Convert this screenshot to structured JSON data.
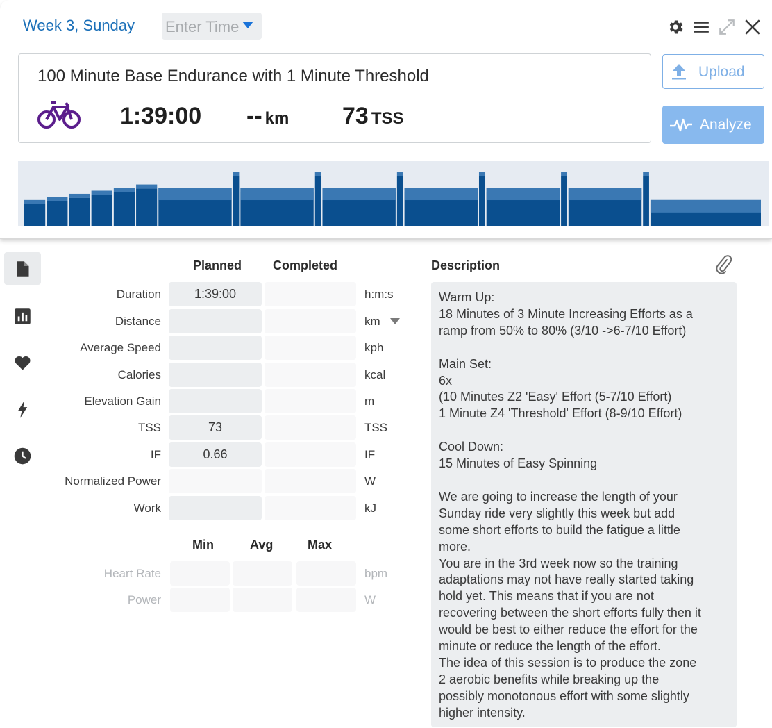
{
  "header": {
    "day_title": "Week 3, Sunday",
    "time_placeholder": "Enter Time",
    "icons": [
      "gear-icon",
      "menu-icon",
      "expand-icon",
      "close-icon"
    ]
  },
  "summary": {
    "title": "100 Minute Base Endurance with 1 Minute Threshold",
    "sport_icon": "bike-icon",
    "duration": "1:39:00",
    "distance_value": "--",
    "distance_unit": "km",
    "tss_value": "73",
    "tss_unit": "TSS"
  },
  "actions": {
    "upload_label": "Upload",
    "analyze_label": "Analyze"
  },
  "colors": {
    "accent_blue": "#1a6fb8",
    "bike_purple": "#5b1d8c",
    "graph_dark": "#0a4f8f",
    "graph_light": "#3a78b3",
    "button_light": "#88b9ee"
  },
  "sidebar": {
    "tabs": [
      {
        "name": "summary",
        "icon": "document-icon",
        "active": true
      },
      {
        "name": "charts",
        "icon": "bar-chart-icon",
        "active": false
      },
      {
        "name": "heart",
        "icon": "heart-icon",
        "active": false
      },
      {
        "name": "power",
        "icon": "lightning-icon",
        "active": false
      },
      {
        "name": "time",
        "icon": "clock-icon",
        "active": false
      }
    ]
  },
  "metrics": {
    "planned_header": "Planned",
    "completed_header": "Completed",
    "rows": [
      {
        "label": "Duration",
        "planned": "1:39:00",
        "completed": "",
        "unit": "h:m:s"
      },
      {
        "label": "Distance",
        "planned": "",
        "completed": "",
        "unit": "km"
      },
      {
        "label": "Average Speed",
        "planned": "",
        "completed": "",
        "unit": "kph"
      },
      {
        "label": "Calories",
        "planned": "",
        "completed": "",
        "unit": "kcal"
      },
      {
        "label": "Elevation Gain",
        "planned": "",
        "completed": "",
        "unit": "m"
      },
      {
        "label": "TSS",
        "planned": "73",
        "completed": "",
        "unit": "TSS"
      },
      {
        "label": "IF",
        "planned": "0.66",
        "completed": "",
        "unit": "IF"
      },
      {
        "label": "Normalized Power",
        "planned": "",
        "completed": "",
        "unit": "W"
      },
      {
        "label": "Work",
        "planned": "",
        "completed": "",
        "unit": "kJ"
      }
    ],
    "range_headers": {
      "min": "Min",
      "avg": "Avg",
      "max": "Max"
    },
    "range_rows": [
      {
        "label": "Heart Rate",
        "min": "",
        "avg": "",
        "max": "",
        "unit": "bpm"
      },
      {
        "label": "Power",
        "min": "",
        "avg": "",
        "max": "",
        "unit": "W"
      }
    ]
  },
  "description": {
    "heading": "Description",
    "attach_icon": "paperclip-icon",
    "text": "Warm Up:\n18 Minutes of 3 Minute Increasing Efforts as a\nramp from 50% to 80% (3/10 ->6-7/10 Effort)\n\nMain Set:\n6x\n(10 Minutes Z2 'Easy' Effort (5-7/10 Effort)\n1 Minute Z4 'Threshold' Effort (8-9/10 Effort)\n\nCool Down:\n15 Minutes of Easy Spinning\n\nWe are going to increase the length of your\nSunday ride very slightly this week but add\nsome short efforts to build the fatigue a little\nmore.\nYou are in the 3rd week now so the training\nadaptations may not have really started taking\nhold yet. This means that if you are not\nrecovering between the short efforts fully then it\nwould be best to either reduce the effort for the\nminute or reduce the length of the effort.\nThe idea of this session is to produce the zone\n2 aerobic benefits while breaking up the\npossibly monotonous effort with some slightly\nhigher intensity."
  },
  "workout_structure": {
    "steps": [
      {
        "minutes": 3,
        "intensity": 0.5
      },
      {
        "minutes": 3,
        "intensity": 0.56
      },
      {
        "minutes": 3,
        "intensity": 0.62
      },
      {
        "minutes": 3,
        "intensity": 0.68
      },
      {
        "minutes": 3,
        "intensity": 0.74
      },
      {
        "minutes": 3,
        "intensity": 0.8
      },
      {
        "minutes": 10,
        "intensity": 0.74
      },
      {
        "minutes": 1,
        "intensity": 1.05
      },
      {
        "minutes": 10,
        "intensity": 0.74
      },
      {
        "minutes": 1,
        "intensity": 1.05
      },
      {
        "minutes": 10,
        "intensity": 0.74
      },
      {
        "minutes": 1,
        "intensity": 1.05
      },
      {
        "minutes": 10,
        "intensity": 0.74
      },
      {
        "minutes": 1,
        "intensity": 1.05
      },
      {
        "minutes": 10,
        "intensity": 0.74
      },
      {
        "minutes": 1,
        "intensity": 1.05
      },
      {
        "minutes": 10,
        "intensity": 0.74
      },
      {
        "minutes": 1,
        "intensity": 1.05
      },
      {
        "minutes": 15,
        "intensity": 0.5
      }
    ]
  }
}
